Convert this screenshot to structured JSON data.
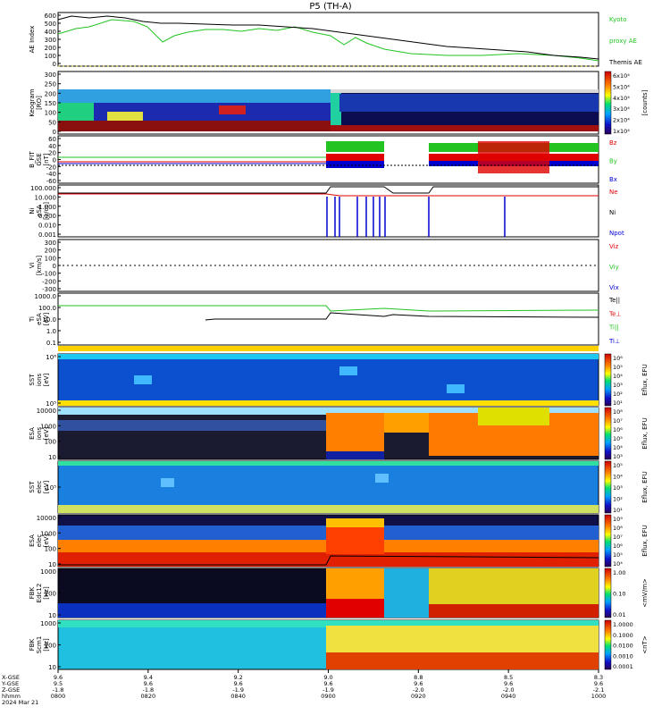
{
  "title": "P5  (TH-A)",
  "panels": [
    {
      "id": "ae",
      "ylabel": "AE Index",
      "ticks": [
        "600",
        "500",
        "400",
        "300",
        "200",
        "100",
        "0"
      ],
      "right_labels": [
        {
          "text": "Kyoto",
          "color": "#22c422"
        },
        {
          "text": "proxy AE",
          "color": "#22c422"
        },
        {
          "text": "Themis AE",
          "color": "#000000"
        }
      ]
    },
    {
      "id": "keogram",
      "ylabel": "Keogram",
      "ylabel2": "[RO]",
      "ticks": [
        "300",
        "250",
        "200",
        "150",
        "100",
        "50",
        "0"
      ],
      "colorbar": {
        "ticks": [
          "6x10⁴",
          "5x10⁴",
          "4x10⁴",
          "3x10⁴",
          "2x10⁴",
          "1x10⁴"
        ],
        "unit": "[counts]"
      }
    },
    {
      "id": "bfield",
      "ylabel": "B_FIT",
      "ylabel2": "GSE",
      "ylabel3": "[nT]",
      "ticks": [
        "60",
        "40",
        "20",
        "0",
        "-20",
        "-40",
        "-60"
      ],
      "right_labels": [
        {
          "text": "Bz",
          "color": "#e00000"
        },
        {
          "text": "By",
          "color": "#22c422"
        },
        {
          "text": "Bx",
          "color": "#0000d0"
        }
      ]
    },
    {
      "id": "density",
      "ylabel": "Ni",
      "ylabel2": "eSA",
      "ylabel3": "[1/cc]",
      "ticks": [
        "100.000",
        "10.000",
        "1.000",
        "0.100",
        "0.010",
        "0.001"
      ],
      "right_labels": [
        {
          "text": "Ne",
          "color": "#e00000"
        },
        {
          "text": "Ni",
          "color": "#000000"
        },
        {
          "text": "Npot",
          "color": "#0000d0"
        }
      ]
    },
    {
      "id": "velocity",
      "ylabel": "Vi",
      "ylabel2": "[km/s]",
      "ticks": [
        "300",
        "200",
        "100",
        "0",
        "-100",
        "-200",
        "-300"
      ],
      "right_labels": [
        {
          "text": "Viz",
          "color": "#e00000"
        },
        {
          "text": "Viy",
          "color": "#22c422"
        },
        {
          "text": "Vix",
          "color": "#0000d0"
        }
      ]
    },
    {
      "id": "temperature",
      "ylabel": "Ti",
      "ylabel2": "eSA",
      "ylabel3": "[eV]",
      "ticks": [
        "1000.0",
        "100.0",
        "10.0",
        "1.0",
        "0.1"
      ],
      "right_labels": [
        {
          "text": "Te||",
          "color": "#000000"
        },
        {
          "text": "Te⊥",
          "color": "#e00000"
        },
        {
          "text": "Ti||",
          "color": "#22c422"
        },
        {
          "text": "Ti⊥",
          "color": "#0000d0"
        }
      ]
    },
    {
      "id": "sst_ion",
      "ylabel": "SST",
      "ylabel2": "ions",
      "ylabel3": "[eV]",
      "ticks": [
        "10⁶",
        "10⁵"
      ],
      "colorbar": {
        "ticks": [
          "10⁶",
          "10⁵",
          "10⁴",
          "10³",
          "10²",
          "10¹"
        ],
        "unit": "Eflux, EFU"
      }
    },
    {
      "id": "esa_ion",
      "ylabel": "ESA",
      "ylabel2": "ions",
      "ylabel3": "[eV]",
      "ticks": [
        "10000",
        "1000",
        "100",
        "10"
      ],
      "colorbar": {
        "ticks": [
          "10⁸",
          "10⁷",
          "10⁶",
          "10⁵",
          "10⁴",
          "10³"
        ],
        "unit": "Eflux, EFU"
      }
    },
    {
      "id": "sst_elec",
      "ylabel": "SST",
      "ylabel2": "elec",
      "ylabel3": "[eV]",
      "ticks": [
        "10⁵"
      ],
      "colorbar": {
        "ticks": [
          "10⁵",
          "10⁴",
          "10³",
          "10²",
          "10¹"
        ],
        "unit": "Eflux, EFU"
      }
    },
    {
      "id": "esa_elec",
      "ylabel": "ESA",
      "ylabel2": "elec",
      "ylabel3": "[eV]",
      "ticks": [
        "10000",
        "1000",
        "100",
        "10"
      ],
      "colorbar": {
        "ticks": [
          "10⁹",
          "10⁸",
          "10⁷",
          "10⁶",
          "10⁵",
          "10⁴"
        ],
        "unit": "Eflux, EFU"
      }
    },
    {
      "id": "fbk_e",
      "ylabel": "FBK",
      "ylabel2": "Edc12",
      "ylabel3": "[Hz]",
      "ticks": [
        "1000",
        "100",
        "10"
      ],
      "colorbar": {
        "ticks": [
          "1.00",
          "0.10",
          "0.01"
        ],
        "unit": "<mV/m>"
      }
    },
    {
      "id": "fbk_b",
      "ylabel": "FBK",
      "ylabel2": "Scm1",
      "ylabel3": "[Hz]",
      "ticks": [
        "1000",
        "100",
        "10"
      ],
      "colorbar": {
        "ticks": [
          "1.0000",
          "0.1000",
          "0.0100",
          "0.0010",
          "0.0001"
        ],
        "unit": "<nT>"
      }
    }
  ],
  "xaxis": {
    "row_labels": [
      "X-GSE",
      "Y-GSE",
      "Z-GSE",
      "hhmm",
      "2024 Mar 21"
    ],
    "columns": [
      [
        "9.6",
        "9.5",
        "-1.8",
        "0800"
      ],
      [
        "9.4",
        "9.6",
        "-1.8",
        "0820"
      ],
      [
        "9.2",
        "9.6",
        "-1.9",
        "0840"
      ],
      [
        "9.0",
        "9.6",
        "-1.9",
        "0900"
      ],
      [
        "8.8",
        "9.6",
        "-2.0",
        "0920"
      ],
      [
        "8.5",
        "9.6",
        "-2.0",
        "0940"
      ],
      [
        "8.3",
        "9.6",
        "-2.1",
        "1000"
      ]
    ]
  },
  "colors": {
    "kyoto": "#22c422",
    "themis": "#000000",
    "red": "#e00000",
    "green": "#22c422",
    "blue": "#0000d0"
  }
}
